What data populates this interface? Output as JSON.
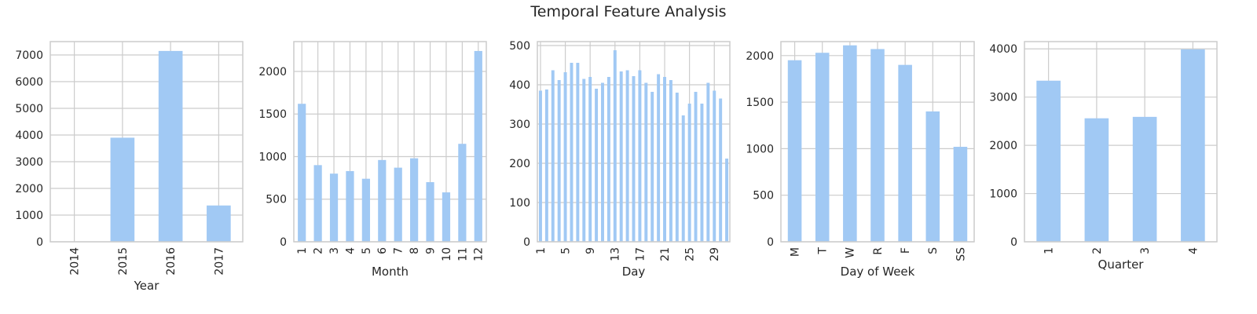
{
  "figure": {
    "title": "Temporal Feature Analysis"
  },
  "colors": {
    "bar": "#a1c9f4",
    "grid": "#cccccc",
    "frame": "#cccccc",
    "text": "#262626"
  },
  "chart_data": [
    {
      "type": "bar",
      "xlabel": "Year",
      "ylabel": "",
      "categories": [
        "2014",
        "2015",
        "2016",
        "2017"
      ],
      "values": [
        0,
        3900,
        7150,
        1360
      ],
      "ylim": [
        0,
        7500
      ],
      "yticks": [
        0,
        1000,
        2000,
        3000,
        4000,
        5000,
        6000,
        7000
      ],
      "xtick_rotation": 90,
      "grid": true
    },
    {
      "type": "bar",
      "xlabel": "Month",
      "ylabel": "",
      "categories": [
        "1",
        "2",
        "3",
        "4",
        "5",
        "6",
        "7",
        "8",
        "9",
        "10",
        "11",
        "12"
      ],
      "values": [
        1620,
        900,
        800,
        830,
        740,
        960,
        870,
        980,
        700,
        580,
        1150,
        2240
      ],
      "ylim": [
        0,
        2350
      ],
      "yticks": [
        0,
        500,
        1000,
        1500,
        2000
      ],
      "xtick_rotation": 90,
      "grid": true
    },
    {
      "type": "bar",
      "xlabel": "Day",
      "ylabel": "",
      "categories": [
        "1",
        "2",
        "3",
        "4",
        "5",
        "6",
        "7",
        "8",
        "9",
        "10",
        "11",
        "12",
        "13",
        "14",
        "15",
        "16",
        "17",
        "18",
        "19",
        "20",
        "21",
        "22",
        "23",
        "24",
        "25",
        "26",
        "27",
        "28",
        "29",
        "30",
        "31"
      ],
      "tick_labels": [
        "1",
        "5",
        "9",
        "13",
        "17",
        "21",
        "25",
        "29"
      ],
      "values": [
        385,
        388,
        437,
        412,
        432,
        456,
        456,
        415,
        420,
        390,
        405,
        420,
        488,
        434,
        437,
        422,
        437,
        405,
        382,
        427,
        420,
        412,
        380,
        322,
        352,
        382,
        352,
        405,
        385,
        365,
        212
      ],
      "ylim": [
        0,
        510
      ],
      "yticks": [
        0,
        100,
        200,
        300,
        400,
        500
      ],
      "xtick_rotation": 90,
      "grid": true
    },
    {
      "type": "bar",
      "xlabel": "Day of Week",
      "ylabel": "",
      "categories": [
        "M",
        "T",
        "W",
        "R",
        "F",
        "S",
        "SS"
      ],
      "values": [
        1950,
        2030,
        2110,
        2070,
        1900,
        1400,
        1020
      ],
      "ylim": [
        0,
        2150
      ],
      "yticks": [
        0,
        500,
        1000,
        1500,
        2000
      ],
      "xtick_rotation": 90,
      "grid": true
    },
    {
      "type": "bar",
      "xlabel": "Quarter",
      "ylabel": "",
      "categories": [
        "1",
        "2",
        "3",
        "4"
      ],
      "values": [
        3340,
        2560,
        2590,
        3990
      ],
      "ylim": [
        0,
        4150
      ],
      "yticks": [
        0,
        1000,
        2000,
        3000,
        4000
      ],
      "xtick_rotation": 90,
      "grid": true
    }
  ]
}
